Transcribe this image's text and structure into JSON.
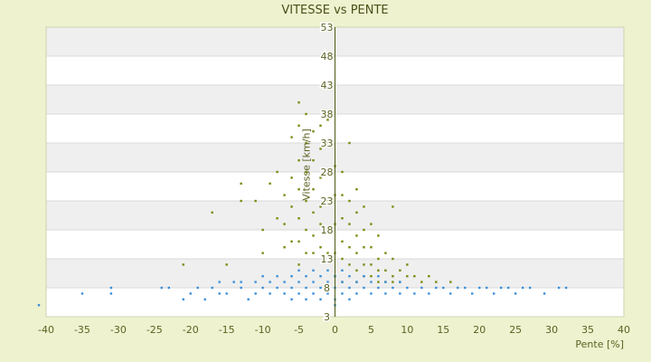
{
  "chart_data": {
    "type": "scatter",
    "title": "VITESSE vs PENTE",
    "xlabel": "Pente [%]",
    "ylabel": "Vitesse [km/h]",
    "xlim": [
      -40,
      40
    ],
    "ylim": [
      3,
      53
    ],
    "x_ticks": [
      -40,
      -35,
      -30,
      -25,
      -20,
      -15,
      -10,
      -5,
      0,
      5,
      10,
      15,
      20,
      25,
      30,
      35,
      40
    ],
    "y_ticks": [
      3,
      8,
      13,
      18,
      23,
      28,
      33,
      38,
      43,
      48,
      53
    ],
    "legend": "none",
    "grid": "horizontal alternating bands",
    "colors": {
      "background": "#eef2cf",
      "band_light": "#ffffff",
      "band_dark": "#efefef",
      "series_a": "#7a8a10",
      "series_b": "#3b8fd9",
      "axis": "#4a5a10"
    },
    "series": [
      {
        "color": "#7a8a10",
        "points": [
          [
            -17,
            21
          ],
          [
            -13,
            23
          ],
          [
            -13,
            26
          ],
          [
            -11,
            23
          ],
          [
            -10,
            14
          ],
          [
            -10,
            18
          ],
          [
            -9,
            26
          ],
          [
            -8,
            20
          ],
          [
            -8,
            28
          ],
          [
            -7,
            15
          ],
          [
            -7,
            19
          ],
          [
            -7,
            24
          ],
          [
            -6,
            16
          ],
          [
            -6,
            22
          ],
          [
            -6,
            27
          ],
          [
            -6,
            34
          ],
          [
            -5,
            16
          ],
          [
            -5,
            20
          ],
          [
            -5,
            25
          ],
          [
            -5,
            30
          ],
          [
            -5,
            36
          ],
          [
            -5,
            40
          ],
          [
            -4,
            14
          ],
          [
            -4,
            18
          ],
          [
            -4,
            23
          ],
          [
            -4,
            28
          ],
          [
            -4,
            33
          ],
          [
            -4,
            38
          ],
          [
            -3,
            14
          ],
          [
            -3,
            17
          ],
          [
            -3,
            21
          ],
          [
            -3,
            25
          ],
          [
            -3,
            30
          ],
          [
            -3,
            35
          ],
          [
            -2,
            15
          ],
          [
            -2,
            19
          ],
          [
            -2,
            22
          ],
          [
            -2,
            27
          ],
          [
            -2,
            32
          ],
          [
            -2,
            36
          ],
          [
            -1,
            14
          ],
          [
            -1,
            18
          ],
          [
            -1,
            23
          ],
          [
            -1,
            28
          ],
          [
            -1,
            33
          ],
          [
            -1,
            37
          ],
          [
            0,
            14
          ],
          [
            0,
            19
          ],
          [
            0,
            24
          ],
          [
            0,
            29
          ],
          [
            1,
            13
          ],
          [
            1,
            16
          ],
          [
            1,
            20
          ],
          [
            1,
            24
          ],
          [
            1,
            28
          ],
          [
            2,
            12
          ],
          [
            2,
            15
          ],
          [
            2,
            19
          ],
          [
            2,
            23
          ],
          [
            2,
            33
          ],
          [
            3,
            11
          ],
          [
            3,
            14
          ],
          [
            3,
            17
          ],
          [
            3,
            21
          ],
          [
            3,
            25
          ],
          [
            4,
            10
          ],
          [
            4,
            12
          ],
          [
            4,
            15
          ],
          [
            4,
            18
          ],
          [
            4,
            22
          ],
          [
            5,
            10
          ],
          [
            5,
            12
          ],
          [
            5,
            15
          ],
          [
            5,
            19
          ],
          [
            6,
            9
          ],
          [
            6,
            11
          ],
          [
            6,
            13
          ],
          [
            6,
            17
          ],
          [
            7,
            9
          ],
          [
            7,
            11
          ],
          [
            7,
            14
          ],
          [
            8,
            9
          ],
          [
            8,
            10
          ],
          [
            8,
            13
          ],
          [
            8,
            22
          ],
          [
            9,
            9
          ],
          [
            9,
            11
          ],
          [
            10,
            10
          ],
          [
            10,
            12
          ],
          [
            11,
            10
          ],
          [
            12,
            9
          ],
          [
            13,
            10
          ],
          [
            14,
            9
          ],
          [
            16,
            9
          ],
          [
            -21,
            12
          ],
          [
            -15,
            12
          ],
          [
            0,
            10
          ],
          [
            1,
            9
          ],
          [
            3,
            9
          ],
          [
            -5,
            12
          ]
        ]
      },
      {
        "color": "#3b8fd9",
        "points": [
          [
            -41,
            5
          ],
          [
            -35,
            7
          ],
          [
            -31,
            7
          ],
          [
            -31,
            8
          ],
          [
            -24,
            8
          ],
          [
            -23,
            8
          ],
          [
            -21,
            6
          ],
          [
            -18,
            6
          ],
          [
            -17,
            8
          ],
          [
            -16,
            9
          ],
          [
            -15,
            7
          ],
          [
            -14,
            9
          ],
          [
            -13,
            8
          ],
          [
            -12,
            6
          ],
          [
            -11,
            7
          ],
          [
            -10,
            8
          ],
          [
            -10,
            10
          ],
          [
            -9,
            7
          ],
          [
            -9,
            9
          ],
          [
            -8,
            8
          ],
          [
            -8,
            10
          ],
          [
            -7,
            7
          ],
          [
            -7,
            9
          ],
          [
            -6,
            8
          ],
          [
            -6,
            10
          ],
          [
            -6,
            6
          ],
          [
            -5,
            7
          ],
          [
            -5,
            9
          ],
          [
            -5,
            11
          ],
          [
            -4,
            8
          ],
          [
            -4,
            10
          ],
          [
            -4,
            6
          ],
          [
            -3,
            7
          ],
          [
            -3,
            9
          ],
          [
            -3,
            11
          ],
          [
            -2,
            8
          ],
          [
            -2,
            10
          ],
          [
            -2,
            6
          ],
          [
            -1,
            7
          ],
          [
            -1,
            9
          ],
          [
            -1,
            11
          ],
          [
            0,
            8
          ],
          [
            0,
            10
          ],
          [
            0,
            6
          ],
          [
            1,
            7
          ],
          [
            1,
            9
          ],
          [
            1,
            11
          ],
          [
            2,
            8
          ],
          [
            2,
            10
          ],
          [
            2,
            6
          ],
          [
            3,
            7
          ],
          [
            3,
            9
          ],
          [
            4,
            8
          ],
          [
            4,
            10
          ],
          [
            5,
            7
          ],
          [
            5,
            9
          ],
          [
            6,
            8
          ],
          [
            6,
            10
          ],
          [
            7,
            7
          ],
          [
            7,
            9
          ],
          [
            8,
            8
          ],
          [
            9,
            7
          ],
          [
            9,
            9
          ],
          [
            10,
            8
          ],
          [
            11,
            7
          ],
          [
            12,
            8
          ],
          [
            13,
            7
          ],
          [
            14,
            8
          ],
          [
            15,
            8
          ],
          [
            16,
            7
          ],
          [
            17,
            8
          ],
          [
            18,
            8
          ],
          [
            19,
            7
          ],
          [
            20,
            8
          ],
          [
            21,
            8
          ],
          [
            22,
            7
          ],
          [
            23,
            8
          ],
          [
            24,
            8
          ],
          [
            25,
            7
          ],
          [
            26,
            8
          ],
          [
            27,
            8
          ],
          [
            29,
            7
          ],
          [
            31,
            8
          ],
          [
            32,
            8
          ],
          [
            -20,
            7
          ],
          [
            -19,
            8
          ],
          [
            -16,
            7
          ],
          [
            -13,
            9
          ],
          [
            -11,
            9
          ],
          [
            0,
            5
          ]
        ]
      }
    ]
  }
}
